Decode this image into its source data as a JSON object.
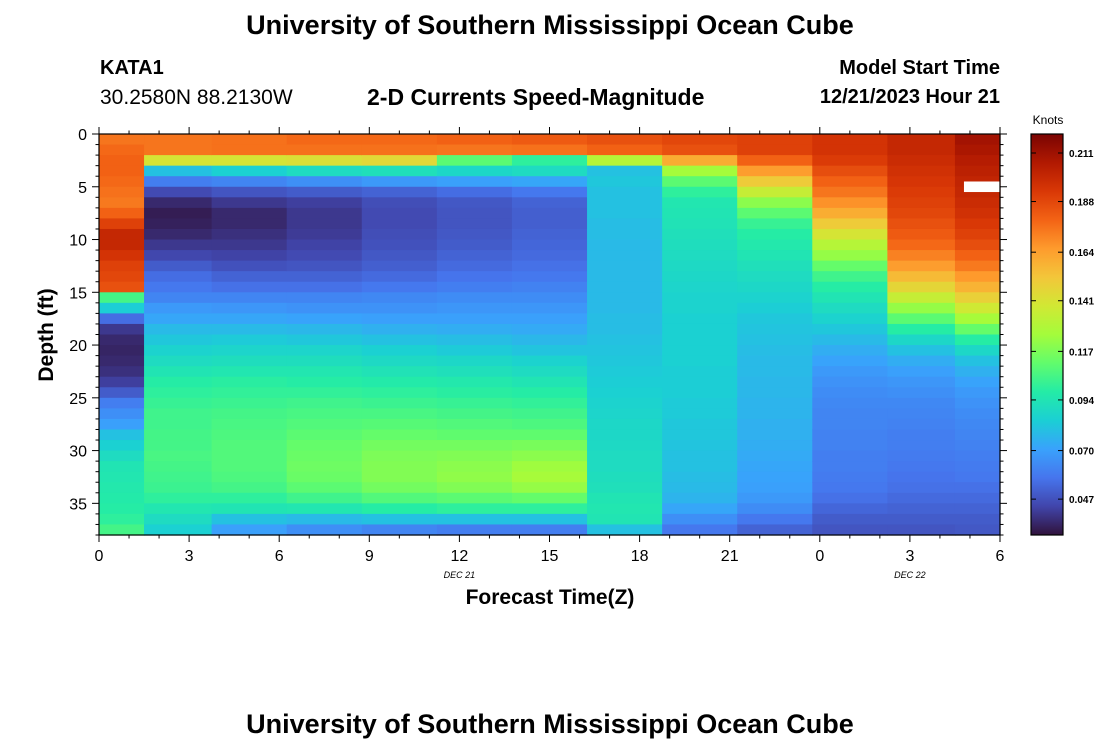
{
  "header": {
    "title": "University of Southern Mississippi Ocean Cube",
    "station": "KATA1",
    "coords": "30.2580N  88.2130W",
    "subtitle": "2-D Currents Speed-Magnitude",
    "model_start_label": "Model Start Time",
    "model_start_value": "12/21/2023 Hour 21"
  },
  "footer": {
    "title": "University of Southern Mississippi Ocean Cube"
  },
  "chart_data": {
    "type": "heatmap",
    "title": "2-D Currents Speed-Magnitude",
    "xlabel": "Forecast Time(Z)",
    "ylabel": "Depth (ft)",
    "x_tick_labels": [
      "0",
      "3",
      "6",
      "9",
      "12",
      "15",
      "18",
      "21",
      "0",
      "3",
      "6"
    ],
    "x_date_labels": [
      {
        "label": "DEC 21",
        "tick": 4
      },
      {
        "label": "DEC 22",
        "tick": 9
      }
    ],
    "x_hours": [
      0,
      3,
      6,
      9,
      12,
      15,
      18,
      21,
      24,
      27,
      30
    ],
    "xlim": [
      0,
      30
    ],
    "y_ticks": [
      0,
      5,
      10,
      15,
      20,
      25,
      30,
      35
    ],
    "ylim": [
      0,
      38
    ],
    "colorbar_label": "Knots",
    "colorbar_ticks": [
      0.211,
      0.188,
      0.164,
      0.141,
      0.117,
      0.094,
      0.07,
      0.047
    ],
    "colorbar_range": [
      0.03,
      0.22
    ],
    "colormap": [
      "#30123b",
      "#4145ab",
      "#4675ed",
      "#39a2fc",
      "#1bcfd4",
      "#24eca6",
      "#61fc6c",
      "#a4fc3b",
      "#d1e834",
      "#f3c63a",
      "#fe9b2d",
      "#f36315",
      "#d93806",
      "#b11901",
      "#7a0403"
    ],
    "columns_hours": [
      0.5,
      2.5,
      5,
      7.5,
      10,
      12.5,
      15,
      17.5,
      20,
      22.5,
      25,
      27.5,
      29.5
    ],
    "depth_rows": [
      0.5,
      1.5,
      2.5,
      3.5,
      4.5,
      5.5,
      6.5,
      7.5,
      8.5,
      9.5,
      10.5,
      11.5,
      12.5,
      13.5,
      14.5,
      15.5,
      16.5,
      17.5,
      18.5,
      19.5,
      20.5,
      21.5,
      22.5,
      23.5,
      24.5,
      25.5,
      26.5,
      27.5,
      28.5,
      29.5,
      30.5,
      31.5,
      32.5,
      33.5,
      34.5,
      35.5,
      36.5,
      37.5
    ],
    "speed_knots": [
      [
        0.175,
        0.178,
        0.18,
        0.18,
        0.178,
        0.176,
        0.174,
        0.18,
        0.19,
        0.2,
        0.2,
        0.195,
        0.19,
        0.188,
        0.185,
        0.105,
        0.084,
        0.055,
        0.04,
        0.036,
        0.035,
        0.036,
        0.038,
        0.042,
        0.05,
        0.06,
        0.065,
        0.07,
        0.08,
        0.085,
        0.09,
        0.094,
        0.095,
        0.096,
        0.097,
        0.098,
        0.1,
        0.105
      ],
      [
        0.175,
        0.175,
        0.14,
        0.08,
        0.06,
        0.045,
        0.036,
        0.033,
        0.034,
        0.036,
        0.04,
        0.044,
        0.05,
        0.055,
        0.058,
        0.062,
        0.068,
        0.072,
        0.078,
        0.082,
        0.086,
        0.09,
        0.094,
        0.098,
        0.1,
        0.102,
        0.104,
        0.104,
        0.105,
        0.105,
        0.106,
        0.105,
        0.104,
        0.103,
        0.1,
        0.095,
        0.09,
        0.085
      ],
      [
        0.176,
        0.176,
        0.14,
        0.085,
        0.062,
        0.048,
        0.04,
        0.036,
        0.036,
        0.038,
        0.04,
        0.043,
        0.047,
        0.052,
        0.056,
        0.062,
        0.067,
        0.072,
        0.078,
        0.083,
        0.087,
        0.091,
        0.095,
        0.099,
        0.101,
        0.103,
        0.105,
        0.106,
        0.107,
        0.108,
        0.108,
        0.108,
        0.107,
        0.105,
        0.1,
        0.094,
        0.08,
        0.07
      ],
      [
        0.178,
        0.176,
        0.142,
        0.09,
        0.065,
        0.05,
        0.042,
        0.04,
        0.04,
        0.041,
        0.043,
        0.045,
        0.048,
        0.052,
        0.056,
        0.062,
        0.066,
        0.071,
        0.077,
        0.082,
        0.087,
        0.091,
        0.095,
        0.098,
        0.101,
        0.104,
        0.106,
        0.108,
        0.11,
        0.112,
        0.113,
        0.114,
        0.113,
        0.11,
        0.104,
        0.095,
        0.078,
        0.065
      ],
      [
        0.178,
        0.176,
        0.145,
        0.092,
        0.068,
        0.052,
        0.046,
        0.045,
        0.045,
        0.046,
        0.047,
        0.049,
        0.051,
        0.054,
        0.058,
        0.063,
        0.066,
        0.07,
        0.075,
        0.08,
        0.085,
        0.089,
        0.093,
        0.097,
        0.1,
        0.103,
        0.106,
        0.109,
        0.112,
        0.115,
        0.117,
        0.118,
        0.118,
        0.115,
        0.108,
        0.098,
        0.08,
        0.062
      ],
      [
        0.18,
        0.175,
        0.11,
        0.088,
        0.07,
        0.055,
        0.049,
        0.048,
        0.048,
        0.049,
        0.05,
        0.052,
        0.054,
        0.057,
        0.06,
        0.064,
        0.067,
        0.07,
        0.074,
        0.079,
        0.083,
        0.088,
        0.092,
        0.096,
        0.099,
        0.102,
        0.105,
        0.108,
        0.111,
        0.115,
        0.118,
        0.12,
        0.121,
        0.118,
        0.11,
        0.1,
        0.08,
        0.06
      ],
      [
        0.182,
        0.176,
        0.1,
        0.09,
        0.072,
        0.058,
        0.052,
        0.051,
        0.051,
        0.052,
        0.053,
        0.054,
        0.056,
        0.058,
        0.061,
        0.064,
        0.067,
        0.07,
        0.073,
        0.077,
        0.081,
        0.086,
        0.09,
        0.094,
        0.098,
        0.101,
        0.104,
        0.107,
        0.111,
        0.116,
        0.12,
        0.124,
        0.126,
        0.122,
        0.112,
        0.1,
        0.08,
        0.06
      ],
      [
        0.185,
        0.18,
        0.13,
        0.08,
        0.082,
        0.08,
        0.08,
        0.08,
        0.079,
        0.079,
        0.078,
        0.078,
        0.078,
        0.078,
        0.078,
        0.078,
        0.078,
        0.079,
        0.079,
        0.08,
        0.081,
        0.082,
        0.083,
        0.084,
        0.085,
        0.086,
        0.087,
        0.088,
        0.088,
        0.089,
        0.09,
        0.09,
        0.091,
        0.092,
        0.094,
        0.095,
        0.094,
        0.08
      ],
      [
        0.188,
        0.185,
        0.16,
        0.125,
        0.11,
        0.1,
        0.095,
        0.094,
        0.093,
        0.092,
        0.091,
        0.09,
        0.089,
        0.088,
        0.087,
        0.086,
        0.086,
        0.085,
        0.085,
        0.085,
        0.085,
        0.085,
        0.084,
        0.084,
        0.084,
        0.083,
        0.083,
        0.082,
        0.082,
        0.081,
        0.08,
        0.08,
        0.079,
        0.078,
        0.076,
        0.072,
        0.065,
        0.058
      ],
      [
        0.19,
        0.19,
        0.18,
        0.165,
        0.15,
        0.135,
        0.12,
        0.11,
        0.102,
        0.098,
        0.096,
        0.094,
        0.092,
        0.09,
        0.088,
        0.086,
        0.084,
        0.082,
        0.081,
        0.08,
        0.079,
        0.078,
        0.078,
        0.077,
        0.077,
        0.076,
        0.076,
        0.075,
        0.075,
        0.074,
        0.073,
        0.072,
        0.071,
        0.07,
        0.068,
        0.064,
        0.058,
        0.052
      ],
      [
        0.195,
        0.195,
        0.192,
        0.186,
        0.18,
        0.175,
        0.168,
        0.16,
        0.15,
        0.14,
        0.13,
        0.122,
        0.112,
        0.104,
        0.098,
        0.094,
        0.09,
        0.086,
        0.082,
        0.078,
        0.074,
        0.071,
        0.068,
        0.066,
        0.064,
        0.063,
        0.062,
        0.062,
        0.061,
        0.061,
        0.06,
        0.06,
        0.059,
        0.058,
        0.056,
        0.053,
        0.05,
        0.048
      ],
      [
        0.2,
        0.2,
        0.198,
        0.196,
        0.194,
        0.192,
        0.19,
        0.188,
        0.185,
        0.182,
        0.178,
        0.172,
        0.165,
        0.156,
        0.146,
        0.135,
        0.122,
        0.11,
        0.098,
        0.088,
        0.08,
        0.074,
        0.07,
        0.067,
        0.065,
        0.063,
        0.062,
        0.061,
        0.06,
        0.06,
        0.059,
        0.058,
        0.057,
        0.056,
        0.054,
        0.052,
        0.05,
        0.048
      ],
      [
        0.21,
        0.208,
        0.205,
        0.203,
        0.201,
        0.2,
        0.198,
        0.196,
        0.193,
        0.19,
        0.186,
        0.18,
        0.174,
        0.166,
        0.158,
        0.148,
        0.138,
        0.126,
        0.112,
        0.098,
        0.088,
        0.08,
        0.075,
        0.071,
        0.068,
        0.066,
        0.064,
        0.063,
        0.062,
        0.061,
        0.06,
        0.059,
        0.058,
        0.056,
        0.054,
        0.052,
        0.05,
        0.049
      ]
    ]
  }
}
